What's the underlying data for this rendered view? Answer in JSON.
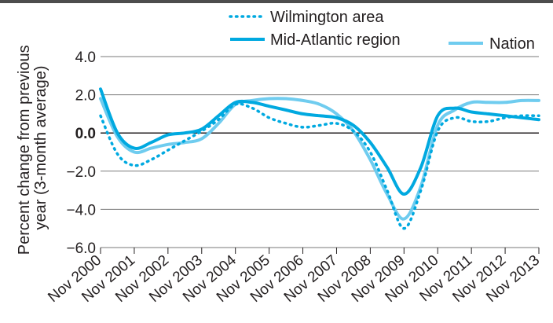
{
  "chart_data": {
    "type": "line",
    "ylabel": "Percent change from previous year (3-month average)",
    "ylabel_lines": [
      "Percent change from previous",
      "year (3-month average)"
    ],
    "ylim": [
      -6.0,
      4.0
    ],
    "y_ticks": [
      {
        "value": 4.0,
        "label": "4.0"
      },
      {
        "value": 2.0,
        "label": "2.0"
      },
      {
        "value": 0.0,
        "label": "0.0"
      },
      {
        "value": -2.0,
        "label": "−2.0"
      },
      {
        "value": -4.0,
        "label": "−4.0"
      },
      {
        "value": -6.0,
        "label": "−6.0"
      }
    ],
    "grid": true,
    "x_ticks": [
      "Nov 2000",
      "Nov 2001",
      "Nov 2002",
      "Nov 2003",
      "Nov 2004",
      "Nov 2005",
      "Nov 2006",
      "Nov 2007",
      "Nov 2008",
      "Nov 2009",
      "Nov 2010",
      "Nov 2011",
      "Nov 2012",
      "Nov 2013"
    ],
    "x_range": [
      2000.0,
      2013.0
    ],
    "legend_position": "top",
    "series": [
      {
        "name": "Wilmington area",
        "style": "dotted",
        "color": "#00a9e0",
        "points": [
          [
            2000.0,
            0.9
          ],
          [
            2000.5,
            -1.1
          ],
          [
            2001.0,
            -1.7
          ],
          [
            2001.5,
            -1.4
          ],
          [
            2002.0,
            -0.9
          ],
          [
            2002.5,
            -0.4
          ],
          [
            2003.0,
            0.1
          ],
          [
            2003.5,
            0.7
          ],
          [
            2004.0,
            1.5
          ],
          [
            2004.5,
            1.3
          ],
          [
            2005.0,
            0.8
          ],
          [
            2005.5,
            0.5
          ],
          [
            2006.0,
            0.3
          ],
          [
            2006.5,
            0.4
          ],
          [
            2007.0,
            0.5
          ],
          [
            2007.5,
            0.1
          ],
          [
            2008.0,
            -1.0
          ],
          [
            2008.5,
            -3.0
          ],
          [
            2009.0,
            -5.0
          ],
          [
            2009.5,
            -3.0
          ],
          [
            2010.0,
            0.1
          ],
          [
            2010.5,
            0.8
          ],
          [
            2011.0,
            0.6
          ],
          [
            2011.5,
            0.6
          ],
          [
            2012.0,
            0.8
          ],
          [
            2012.5,
            0.9
          ],
          [
            2013.0,
            0.9
          ]
        ]
      },
      {
        "name": "Mid-Atlantic region",
        "style": "solid",
        "color": "#00a9e0",
        "points": [
          [
            2000.0,
            2.3
          ],
          [
            2000.5,
            0.0
          ],
          [
            2001.0,
            -0.8
          ],
          [
            2001.5,
            -0.5
          ],
          [
            2002.0,
            -0.1
          ],
          [
            2002.5,
            0.0
          ],
          [
            2003.0,
            0.2
          ],
          [
            2003.5,
            0.9
          ],
          [
            2004.0,
            1.6
          ],
          [
            2004.5,
            1.6
          ],
          [
            2005.0,
            1.4
          ],
          [
            2005.5,
            1.2
          ],
          [
            2006.0,
            1.0
          ],
          [
            2006.5,
            0.9
          ],
          [
            2007.0,
            0.8
          ],
          [
            2007.5,
            0.4
          ],
          [
            2008.0,
            -0.5
          ],
          [
            2008.5,
            -1.8
          ],
          [
            2009.0,
            -3.2
          ],
          [
            2009.5,
            -1.8
          ],
          [
            2010.0,
            0.9
          ],
          [
            2010.5,
            1.3
          ],
          [
            2011.0,
            1.1
          ],
          [
            2011.5,
            1.0
          ],
          [
            2012.0,
            0.9
          ],
          [
            2012.5,
            0.8
          ],
          [
            2013.0,
            0.7
          ]
        ]
      },
      {
        "name": "Nation",
        "style": "solid",
        "color": "#6fccef",
        "points": [
          [
            2000.0,
            1.8
          ],
          [
            2000.5,
            -0.2
          ],
          [
            2001.0,
            -1.0
          ],
          [
            2001.5,
            -0.8
          ],
          [
            2002.0,
            -0.6
          ],
          [
            2002.5,
            -0.5
          ],
          [
            2003.0,
            -0.3
          ],
          [
            2003.5,
            0.5
          ],
          [
            2004.0,
            1.5
          ],
          [
            2004.5,
            1.7
          ],
          [
            2005.0,
            1.8
          ],
          [
            2005.5,
            1.8
          ],
          [
            2006.0,
            1.7
          ],
          [
            2006.5,
            1.5
          ],
          [
            2007.0,
            1.0
          ],
          [
            2007.5,
            0.1
          ],
          [
            2008.0,
            -1.4
          ],
          [
            2008.5,
            -3.2
          ],
          [
            2009.0,
            -4.5
          ],
          [
            2009.5,
            -2.8
          ],
          [
            2010.0,
            0.4
          ],
          [
            2010.5,
            1.2
          ],
          [
            2011.0,
            1.6
          ],
          [
            2011.5,
            1.6
          ],
          [
            2012.0,
            1.6
          ],
          [
            2012.5,
            1.7
          ],
          [
            2013.0,
            1.7
          ]
        ]
      }
    ]
  }
}
